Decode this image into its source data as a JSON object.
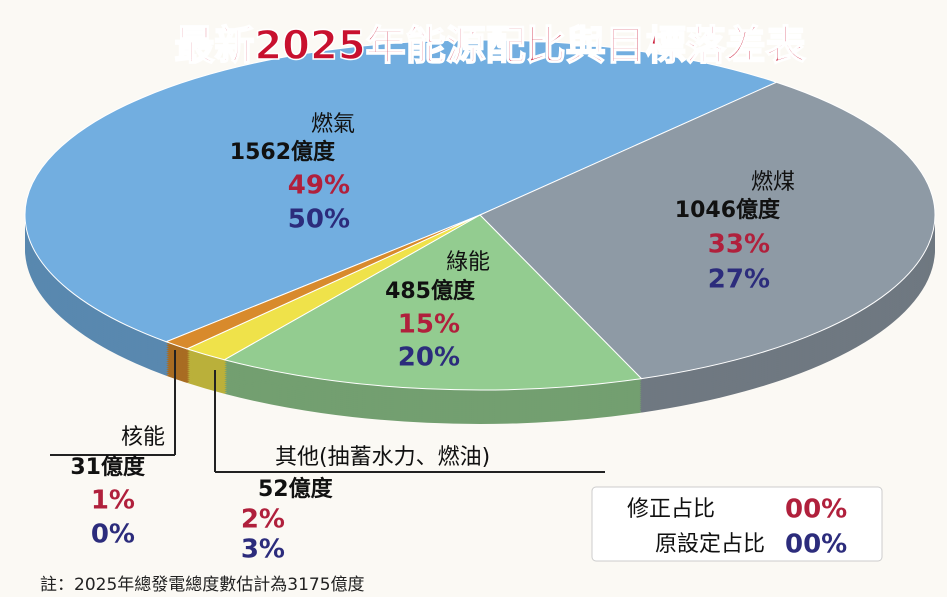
{
  "chart_data": {
    "type": "pie",
    "title": "最新2025年能源配比與目標落差表",
    "categories": [
      "燃氣",
      "燃煤",
      "綠能",
      "其他(抽蓄水力、燃油)",
      "核能"
    ],
    "colors": [
      "#72aee0",
      "#8e9aa5",
      "#93cc90",
      "#efe24a",
      "#d88a2c"
    ],
    "series": [
      {
        "values": [
          1562,
          1046,
          485,
          52,
          31
        ],
        "value_labels": [
          "1562億度",
          "1046億度",
          "485億度",
          "52億度",
          "31億度"
        ]
      },
      {
        "name": "修正占比",
        "color": "#b0203c",
        "values": [
          49,
          33,
          15,
          2,
          1
        ],
        "value_labels": [
          "49%",
          "33%",
          "15%",
          "2%",
          "1%"
        ]
      },
      {
        "name": "原設定占比",
        "color": "#2c2c7c",
        "values": [
          50,
          27,
          20,
          3,
          0
        ],
        "value_labels": [
          "50%",
          "27%",
          "20%",
          "3%",
          "0%"
        ]
      }
    ],
    "legend_sample": "00%",
    "note": "註：2025年總發電總度數估計為3175億度"
  }
}
